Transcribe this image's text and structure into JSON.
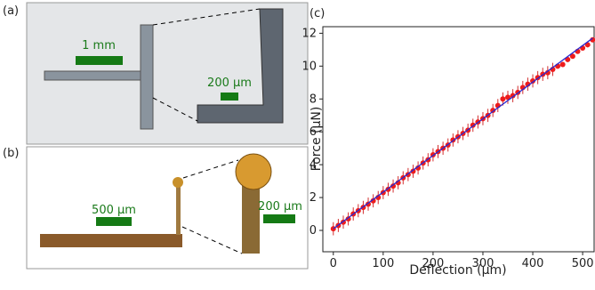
{
  "panels": {
    "a": {
      "label": "(a)",
      "scale_bars": [
        "1 mm",
        "200 µm"
      ]
    },
    "b": {
      "label": "(b)",
      "scale_bars": [
        "500 µm",
        "200 µm"
      ]
    }
  },
  "chart_data": {
    "type": "scatter",
    "label": "(c)",
    "x_label": "Deflection (µm)",
    "y_label": "Force (µN)",
    "x": [
      0,
      10,
      20,
      30,
      40,
      50,
      60,
      70,
      80,
      90,
      100,
      110,
      120,
      130,
      140,
      150,
      160,
      170,
      180,
      190,
      200,
      210,
      220,
      230,
      240,
      250,
      260,
      270,
      280,
      290,
      300,
      310,
      320,
      330,
      340,
      350,
      360,
      370,
      380,
      390,
      400,
      410,
      420,
      430,
      440,
      450,
      460,
      470,
      480,
      490,
      500,
      510,
      520
    ],
    "values": [
      0.1,
      0.3,
      0.5,
      0.7,
      1.0,
      1.2,
      1.4,
      1.6,
      1.8,
      2.0,
      2.3,
      2.5,
      2.7,
      2.9,
      3.2,
      3.4,
      3.6,
      3.8,
      4.1,
      4.3,
      4.6,
      4.8,
      5.0,
      5.2,
      5.5,
      5.7,
      5.9,
      6.1,
      6.4,
      6.6,
      6.8,
      7.0,
      7.3,
      7.6,
      8.0,
      8.1,
      8.2,
      8.4,
      8.7,
      8.9,
      9.1,
      9.3,
      9.5,
      9.6,
      9.8,
      10.0,
      10.1,
      10.4,
      10.6,
      10.9,
      11.1,
      11.3,
      11.6
    ],
    "errors": [
      0.4,
      0.4,
      0.4,
      0.4,
      0.4,
      0.4,
      0.4,
      0.4,
      0.4,
      0.4,
      0.4,
      0.4,
      0.4,
      0.4,
      0.4,
      0.4,
      0.4,
      0.4,
      0.4,
      0.4,
      0.4,
      0.4,
      0.4,
      0.4,
      0.4,
      0.4,
      0.4,
      0.4,
      0.4,
      0.4,
      0.4,
      0.4,
      0.4,
      0.4,
      0.4,
      0.4,
      0.4,
      0.4,
      0.4,
      0.4,
      0.4,
      0.4,
      0.4,
      0.4,
      0.4,
      0.15,
      0.15,
      0.15,
      0.15,
      0.15,
      0.15,
      0.15,
      0.15
    ],
    "color": "#ee1c1c",
    "error_color": "#d03030",
    "fit": {
      "x": [
        0,
        520
      ],
      "values": [
        0.1,
        11.7
      ],
      "color": "#2a2ad0"
    },
    "xlim": [
      -21,
      523
    ],
    "ylim": [
      -1.3,
      12.4
    ],
    "xticks": [
      0,
      100,
      200,
      300,
      400,
      500
    ],
    "yticks": [
      0,
      2,
      4,
      6,
      8,
      10,
      12
    ]
  }
}
